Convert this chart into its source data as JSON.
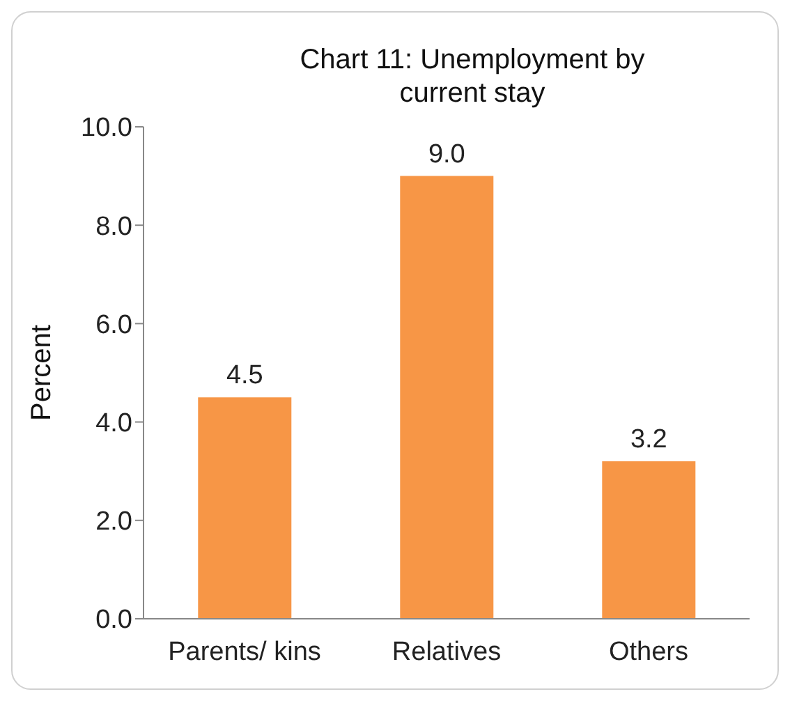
{
  "chart_data": {
    "type": "bar",
    "title": "Chart 11: Unemployment by current stay",
    "ylabel": "Percent",
    "categories": [
      "Parents/ kins",
      "Relatives",
      "Others"
    ],
    "values": [
      4.5,
      9.0,
      3.2
    ],
    "color": "#f79646",
    "value_labels": [
      "4.5",
      "9.0",
      "3.2"
    ],
    "ylim": [
      0,
      10
    ],
    "yticks": [
      {
        "value": 0,
        "label": "0.0"
      },
      {
        "value": 2,
        "label": "2.0"
      },
      {
        "value": 4,
        "label": "4.0"
      },
      {
        "value": 6,
        "label": "6.0"
      },
      {
        "value": 8,
        "label": "8.0"
      },
      {
        "value": 10,
        "label": "10.0"
      }
    ],
    "grid": false,
    "legend": false
  }
}
